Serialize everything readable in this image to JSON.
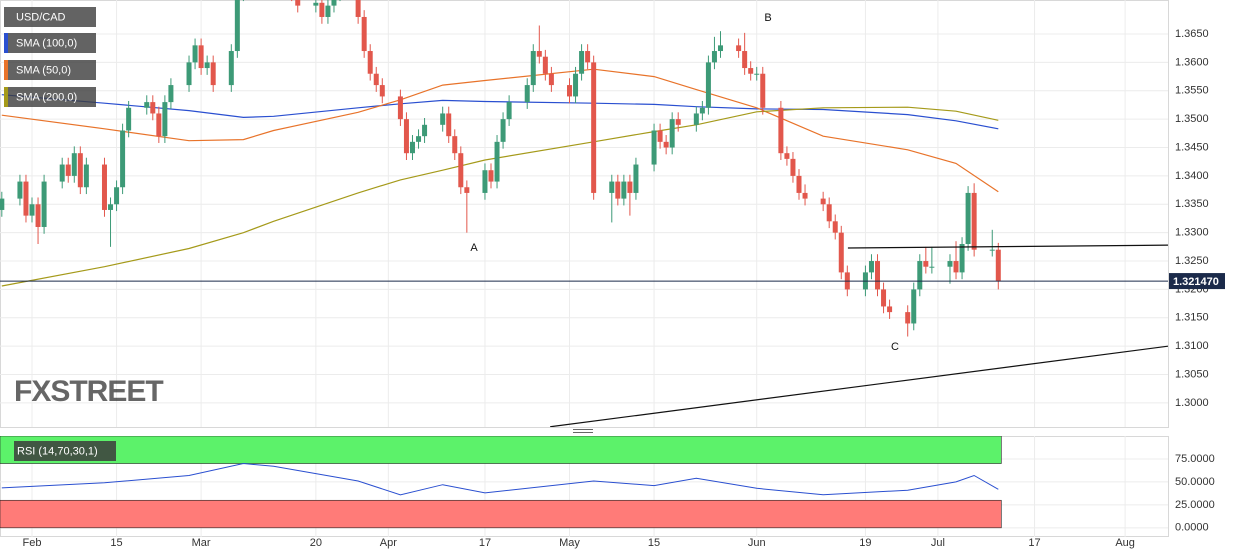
{
  "chart_data": [
    {
      "type": "candlestick",
      "title": "USD/CAD",
      "x": [
        27,
        30,
        31,
        32,
        33,
        34,
        37,
        38,
        39,
        40,
        41,
        44,
        45,
        46,
        47,
        48,
        51,
        52,
        53,
        54,
        55,
        58,
        59,
        60,
        61,
        62,
        65,
        66,
        67,
        68,
        69,
        72,
        73,
        74,
        75,
        76,
        79,
        80,
        81,
        82,
        83,
        86,
        87,
        88,
        89,
        90,
        93,
        94,
        95,
        96,
        97,
        100,
        101,
        102,
        103,
        104,
        107,
        108,
        109,
        110,
        111,
        114,
        115,
        116,
        117,
        118,
        121,
        122,
        123,
        124,
        125,
        128,
        129,
        130,
        131,
        132,
        135,
        136,
        137,
        138,
        139,
        142,
        143,
        144,
        145,
        146,
        149,
        150,
        151,
        152,
        153,
        156,
        157,
        158,
        159,
        160,
        163,
        164,
        165,
        166,
        167,
        170,
        171,
        172,
        173,
        174,
        177,
        178,
        179,
        180,
        181,
        184,
        185,
        186,
        187,
        188,
        191,
        192
      ],
      "open": [
        1.334,
        1.336,
        1.339,
        1.333,
        1.335,
        1.331,
        1.339,
        1.342,
        1.34,
        1.344,
        1.338,
        1.342,
        1.334,
        1.335,
        1.338,
        1.348,
        1.352,
        1.353,
        1.351,
        1.347,
        1.353,
        1.356,
        1.36,
        1.363,
        1.359,
        1.36,
        1.356,
        1.362,
        1.372,
        1.376,
        1.378,
        1.38,
        1.377,
        1.374,
        1.376,
        1.372,
        1.37,
        1.3705,
        1.368,
        1.37,
        1.372,
        1.376,
        1.368,
        1.362,
        1.358,
        1.356,
        1.354,
        1.35,
        1.344,
        1.346,
        1.347,
        1.349,
        1.351,
        1.347,
        1.344,
        1.338,
        1.337,
        1.341,
        1.339,
        1.346,
        1.35,
        1.353,
        1.356,
        1.362,
        1.361,
        1.358,
        1.356,
        1.354,
        1.358,
        1.362,
        1.36,
        1.337,
        1.339,
        1.336,
        1.339,
        1.337,
        1.342,
        1.348,
        1.346,
        1.345,
        1.35,
        1.349,
        1.351,
        1.352,
        1.36,
        1.362,
        1.363,
        1.362,
        1.359,
        1.358,
        1.358,
        1.352,
        1.344,
        1.343,
        1.34,
        1.337,
        1.336,
        1.335,
        1.332,
        1.33,
        1.323,
        1.32,
        1.323,
        1.325,
        1.32,
        1.317,
        1.316,
        1.314,
        1.32,
        1.325,
        1.324,
        1.324,
        1.325,
        1.323,
        1.328,
        1.337,
        1.327,
        1.327
      ],
      "high": [
        1.3372,
        1.3402,
        1.3402,
        1.3362,
        1.3362,
        1.3402,
        1.3432,
        1.3432,
        1.3452,
        1.3452,
        1.3432,
        1.3432,
        1.3362,
        1.3392,
        1.3492,
        1.3532,
        1.3542,
        1.3542,
        1.3522,
        1.3542,
        1.3572,
        1.3612,
        1.3642,
        1.3642,
        1.3612,
        1.3612,
        1.3632,
        1.3732,
        1.3772,
        1.3792,
        1.3812,
        1.3812,
        1.3782,
        1.3772,
        1.3772,
        1.3732,
        1.3717,
        1.3717,
        1.3712,
        1.3732,
        1.3772,
        1.3772,
        1.3692,
        1.3632,
        1.3592,
        1.3572,
        1.3552,
        1.3512,
        1.3472,
        1.3482,
        1.3502,
        1.3522,
        1.3522,
        1.3482,
        1.3452,
        1.3392,
        1.3422,
        1.3422,
        1.3472,
        1.3512,
        1.3542,
        1.3572,
        1.3632,
        1.3665,
        1.3622,
        1.3592,
        1.3572,
        1.3592,
        1.3632,
        1.3632,
        1.3612,
        1.3402,
        1.3402,
        1.3402,
        1.3402,
        1.3432,
        1.3492,
        1.3492,
        1.3472,
        1.3512,
        1.3512,
        1.3522,
        1.3532,
        1.3612,
        1.3645,
        1.3655,
        1.3642,
        1.3652,
        1.3602,
        1.3592,
        1.3592,
        1.3532,
        1.3452,
        1.3442,
        1.3412,
        1.3385,
        1.3372,
        1.3362,
        1.3332,
        1.3312,
        1.3242,
        1.3242,
        1.3262,
        1.3262,
        1.3212,
        1.3182,
        1.3172,
        1.3212,
        1.3262,
        1.3275,
        1.3275,
        1.3262,
        1.3285,
        1.3292,
        1.3382,
        1.3387,
        1.3305,
        1.3282
      ],
      "low": [
        1.3328,
        1.3348,
        1.3318,
        1.3318,
        1.328,
        1.3298,
        1.3378,
        1.3388,
        1.3388,
        1.3368,
        1.3368,
        1.3328,
        1.3275,
        1.3338,
        1.3368,
        1.3468,
        1.3508,
        1.3498,
        1.3458,
        1.3458,
        1.3518,
        1.3548,
        1.3588,
        1.3578,
        1.3578,
        1.3548,
        1.3548,
        1.3608,
        1.3708,
        1.3748,
        1.3768,
        1.3758,
        1.3728,
        1.3728,
        1.3708,
        1.3688,
        1.3688,
        1.3668,
        1.3668,
        1.3688,
        1.3708,
        1.3668,
        1.3608,
        1.3568,
        1.3548,
        1.3528,
        1.3488,
        1.3428,
        1.3428,
        1.3448,
        1.3458,
        1.3478,
        1.3458,
        1.3428,
        1.3368,
        1.33,
        1.3358,
        1.3378,
        1.3378,
        1.3448,
        1.3488,
        1.3518,
        1.3548,
        1.3598,
        1.3568,
        1.3548,
        1.3528,
        1.3528,
        1.3568,
        1.3588,
        1.3358,
        1.3318,
        1.3348,
        1.3348,
        1.333,
        1.3358,
        1.3408,
        1.3448,
        1.3438,
        1.3438,
        1.3478,
        1.3478,
        1.3498,
        1.3508,
        1.3588,
        1.3608,
        1.3608,
        1.3578,
        1.3568,
        1.3568,
        1.3508,
        1.3428,
        1.3418,
        1.3388,
        1.3358,
        1.3348,
        1.3338,
        1.3308,
        1.3288,
        1.3218,
        1.3188,
        1.3188,
        1.3218,
        1.3188,
        1.3158,
        1.3148,
        1.3117,
        1.3128,
        1.3188,
        1.3228,
        1.3228,
        1.321,
        1.3218,
        1.3218,
        1.3268,
        1.3258,
        1.3258,
        1.32
      ],
      "close": [
        1.336,
        1.339,
        1.333,
        1.335,
        1.331,
        1.339,
        1.342,
        1.34,
        1.344,
        1.338,
        1.342,
        1.334,
        1.335,
        1.338,
        1.348,
        1.352,
        1.353,
        1.351,
        1.347,
        1.353,
        1.356,
        1.36,
        1.363,
        1.359,
        1.36,
        1.356,
        1.362,
        1.372,
        1.376,
        1.378,
        1.38,
        1.377,
        1.374,
        1.376,
        1.372,
        1.37,
        1.3705,
        1.368,
        1.37,
        1.372,
        1.376,
        1.368,
        1.362,
        1.358,
        1.356,
        1.354,
        1.35,
        1.344,
        1.346,
        1.347,
        1.349,
        1.351,
        1.347,
        1.344,
        1.338,
        1.337,
        1.341,
        1.339,
        1.346,
        1.35,
        1.353,
        1.356,
        1.362,
        1.361,
        1.358,
        1.356,
        1.354,
        1.358,
        1.362,
        1.36,
        1.337,
        1.339,
        1.336,
        1.339,
        1.337,
        1.342,
        1.348,
        1.346,
        1.345,
        1.35,
        1.349,
        1.351,
        1.352,
        1.36,
        1.362,
        1.363,
        1.362,
        1.359,
        1.358,
        1.358,
        1.352,
        1.344,
        1.343,
        1.34,
        1.337,
        1.336,
        1.335,
        1.332,
        1.33,
        1.323,
        1.32,
        1.323,
        1.325,
        1.32,
        1.317,
        1.316,
        1.314,
        1.32,
        1.325,
        1.324,
        1.324,
        1.325,
        1.323,
        1.328,
        1.337,
        1.327,
        1.327,
        1.32147
      ],
      "up_color": "#3d9a77",
      "down_color": "#e2574c",
      "series": [
        {
          "name": "SMA (100,0)",
          "color": "#2a4fd0",
          "x": [
            27,
            44,
            58,
            67,
            72,
            86,
            93,
            100,
            107,
            125,
            135,
            142,
            152,
            163,
            177,
            185,
            192
          ],
          "values": [
            1.3543,
            1.3528,
            1.3515,
            1.3503,
            1.3505,
            1.352,
            1.3527,
            1.3533,
            1.3531,
            1.3528,
            1.3526,
            1.3522,
            1.3518,
            1.3517,
            1.3508,
            1.3497,
            1.3483
          ]
        },
        {
          "name": "SMA (50,0)",
          "color": "#e8732a",
          "x": [
            27,
            44,
            58,
            67,
            72,
            86,
            93,
            100,
            107,
            125,
            135,
            142,
            152,
            163,
            177,
            185,
            192
          ],
          "values": [
            1.3507,
            1.3483,
            1.3462,
            1.3464,
            1.348,
            1.3512,
            1.3534,
            1.356,
            1.3568,
            1.3588,
            1.3575,
            1.3552,
            1.352,
            1.347,
            1.3446,
            1.3422,
            1.3372
          ]
        },
        {
          "name": "SMA (200,0)",
          "color": "#a59a1a",
          "x": [
            27,
            44,
            58,
            67,
            72,
            86,
            93,
            100,
            107,
            125,
            135,
            142,
            152,
            163,
            177,
            185,
            192
          ],
          "values": [
            1.3206,
            1.324,
            1.3272,
            1.33,
            1.332,
            1.337,
            1.3393,
            1.341,
            1.3428,
            1.346,
            1.3478,
            1.349,
            1.3513,
            1.352,
            1.3521,
            1.3514,
            1.3498
          ]
        }
      ],
      "xlim": [
        26.7,
        220.1
      ],
      "ylim": [
        1.29576,
        1.37099
      ],
      "xticks": [
        {
          "value": 32,
          "label": "Feb"
        },
        {
          "value": 46,
          "label": "15"
        },
        {
          "value": 60,
          "label": "Mar"
        },
        {
          "value": 79,
          "label": "20"
        },
        {
          "value": 91,
          "label": "Apr"
        },
        {
          "value": 107,
          "label": "17"
        },
        {
          "value": 121,
          "label": "May"
        },
        {
          "value": 135,
          "label": "15"
        },
        {
          "value": 152,
          "label": "Jun"
        },
        {
          "value": 170,
          "label": "19"
        },
        {
          "value": 182,
          "label": "Jul"
        },
        {
          "value": 198,
          "label": "17"
        },
        {
          "value": 213,
          "label": "Aug"
        }
      ],
      "yticks": [
        {
          "value": 1.3,
          "label": "1.3000"
        },
        {
          "value": 1.305,
          "label": "1.3050"
        },
        {
          "value": 1.31,
          "label": "1.3100"
        },
        {
          "value": 1.315,
          "label": "1.3150"
        },
        {
          "value": 1.32,
          "label": "1.3200"
        },
        {
          "value": 1.325,
          "label": "1.3250"
        },
        {
          "value": 1.33,
          "label": "1.3300"
        },
        {
          "value": 1.335,
          "label": "1.3350"
        },
        {
          "value": 1.34,
          "label": "1.3400"
        },
        {
          "value": 1.345,
          "label": "1.3450"
        },
        {
          "value": 1.35,
          "label": "1.3500"
        },
        {
          "value": 1.355,
          "label": "1.3550"
        },
        {
          "value": 1.36,
          "label": "1.3600"
        },
        {
          "value": 1.365,
          "label": "1.3650"
        }
      ],
      "grid": true,
      "last_price": {
        "value": 1.32147,
        "label": "1.321470"
      },
      "trend_lines": [
        {
          "x": [
            167.1,
            220.1
          ],
          "y": [
            1.3273,
            1.3278
          ]
        },
        {
          "x": [
            117.8,
            220.1
          ],
          "y": [
            1.2958,
            1.31
          ]
        }
      ],
      "annotations": [
        "A",
        "B",
        "C"
      ],
      "watermark": "FXSTREET"
    },
    {
      "type": "line",
      "title": "RSI (14,70,30,1)",
      "color": "#2a4fd0",
      "x": [
        27,
        44,
        58,
        67,
        72,
        86,
        93,
        100,
        107,
        125,
        135,
        142,
        152,
        163,
        177,
        185,
        188,
        192
      ],
      "values": [
        43.5,
        49,
        57,
        70,
        67,
        51,
        36,
        47,
        38,
        51,
        46,
        54,
        43,
        36,
        41,
        50,
        57,
        42
      ],
      "ylim": [
        -10,
        100
      ],
      "yticks": [
        {
          "value": 0,
          "label": "0.0000"
        },
        {
          "value": 25,
          "label": "25.0000"
        },
        {
          "value": 50,
          "label": "50.0000"
        },
        {
          "value": 75,
          "label": "75.0000"
        }
      ],
      "overbought": 70,
      "oversold": 30,
      "overbought_color": "#5cf26a",
      "oversold_color": "#ff7b78"
    }
  ]
}
